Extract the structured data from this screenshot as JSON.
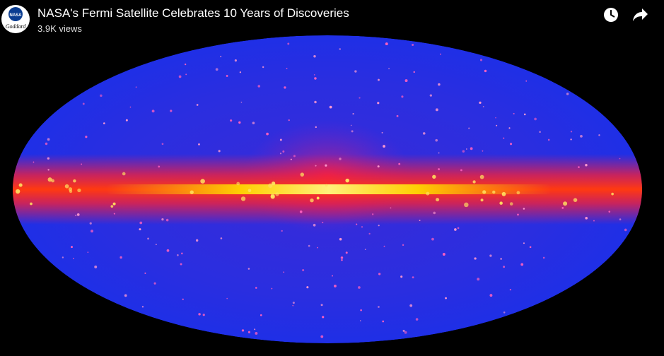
{
  "video": {
    "title": "NASA's Fermi Satellite Celebrates 10 Years of Discoveries",
    "views": "3.9K views"
  },
  "channel_logo": {
    "top": "NASA",
    "bottom": "Goddard"
  }
}
